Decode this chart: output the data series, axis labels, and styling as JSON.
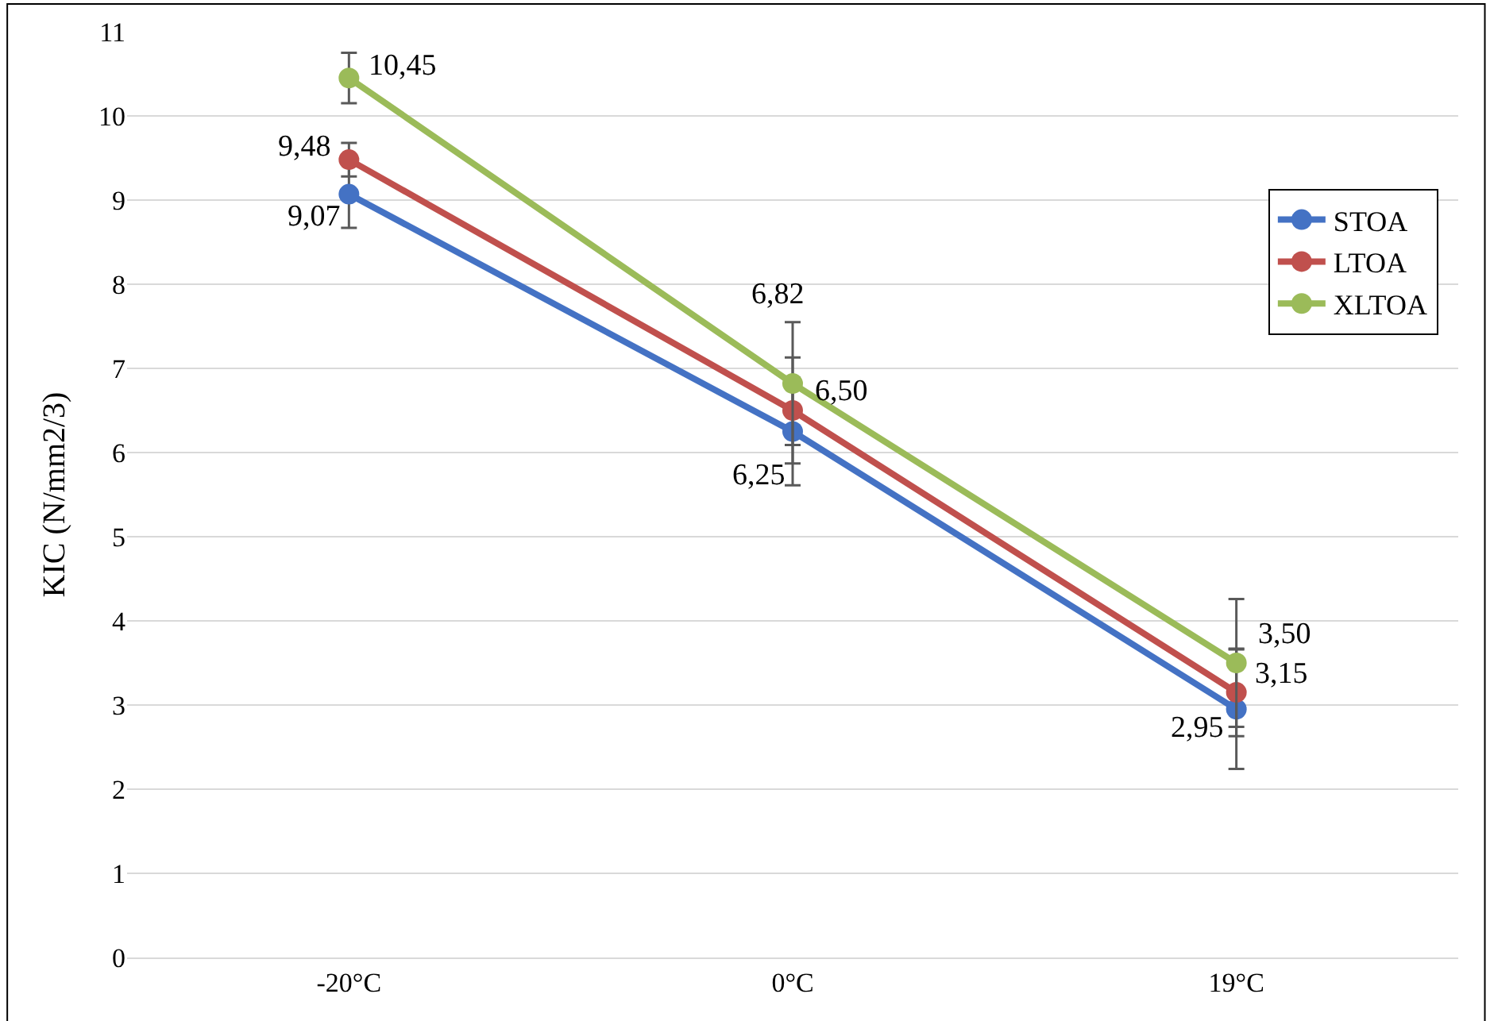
{
  "chart_data": {
    "type": "line",
    "ylabel": "KIC (N/mm2/3)",
    "categories": [
      "-20°C",
      "0°C",
      "19°C"
    ],
    "series": [
      {
        "name": "STOA",
        "color": "#4472c4",
        "values": [
          9.07,
          6.25,
          2.95
        ],
        "errors": [
          0.4,
          0.64,
          0.71
        ],
        "value_labels": [
          "9,07",
          "6,25",
          "2,95"
        ]
      },
      {
        "name": "LTOA",
        "color": "#c0504d",
        "values": [
          9.48,
          6.5,
          3.15
        ],
        "errors": [
          0.2,
          0.63,
          0.52
        ],
        "value_labels": [
          "9,48",
          "6,50",
          "3,15"
        ]
      },
      {
        "name": "XLTOA",
        "color": "#9bbb59",
        "values": [
          10.45,
          6.82,
          3.5
        ],
        "errors": [
          0.3,
          0.73,
          0.76
        ],
        "value_labels": [
          "10,45",
          "6,82",
          "3,50"
        ]
      }
    ],
    "ylim": [
      0,
      11
    ],
    "yticks": [
      0,
      1,
      2,
      3,
      4,
      5,
      6,
      7,
      8,
      9,
      10,
      11
    ],
    "grid": "y",
    "legend": "right",
    "marker": "circle",
    "line_style": "solid"
  }
}
